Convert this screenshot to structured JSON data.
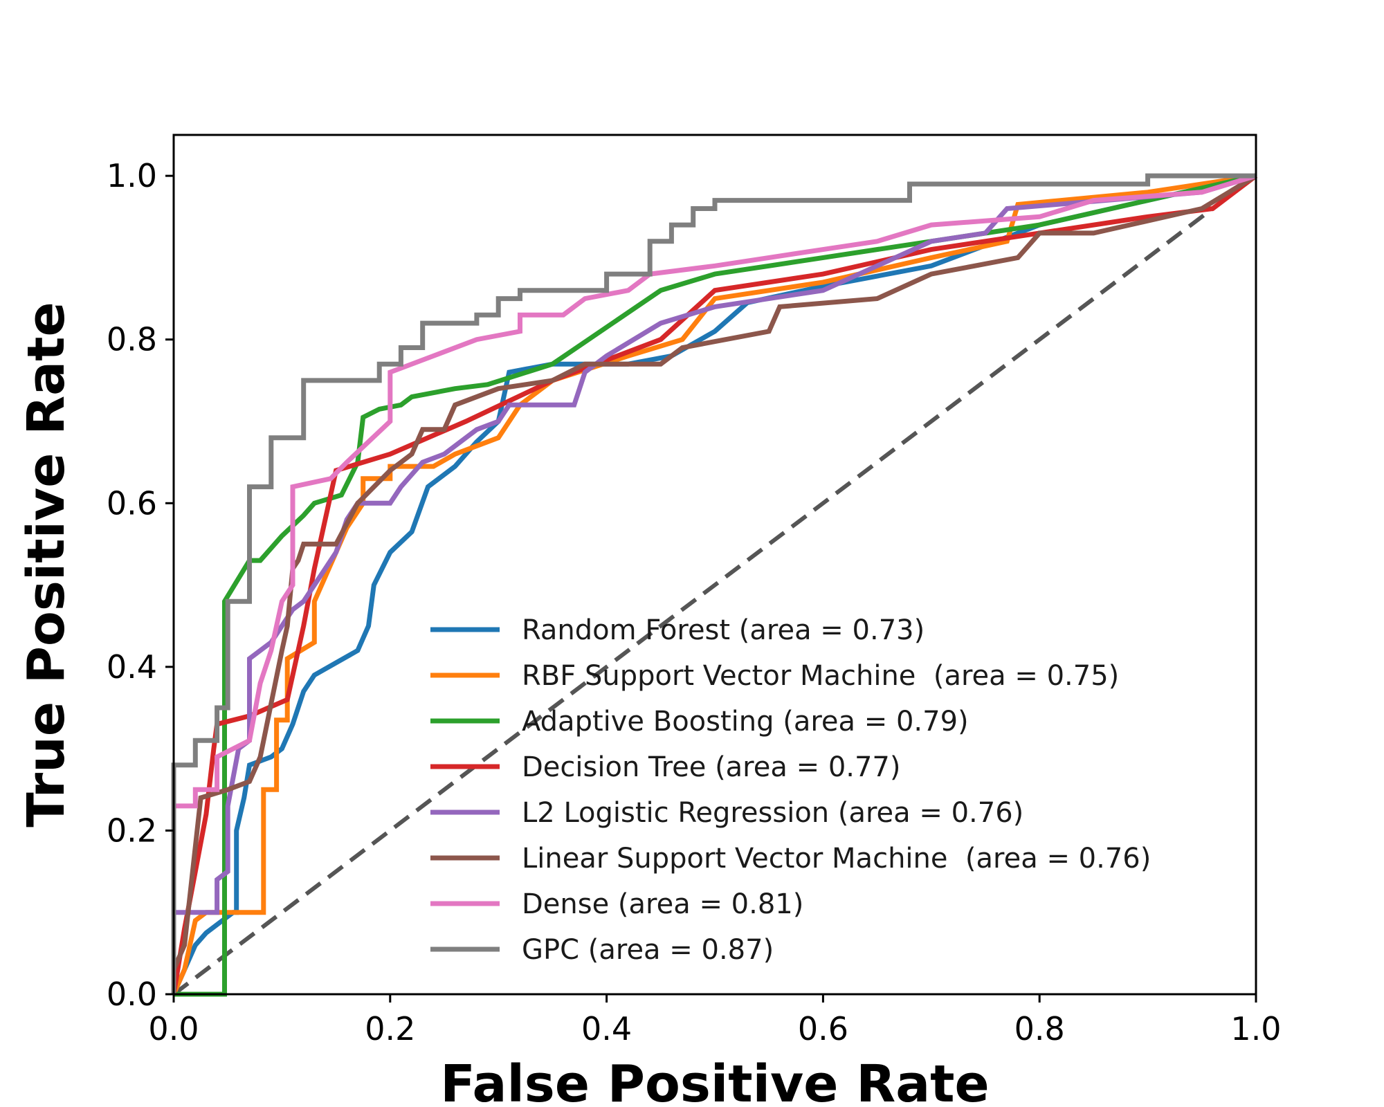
{
  "chart_data": {
    "type": "line",
    "title": "",
    "xlabel": "False Positive Rate",
    "ylabel": "True Positive Rate",
    "xlim": [
      0.0,
      1.0
    ],
    "ylim": [
      0.0,
      1.05
    ],
    "xticks": [
      "0.0",
      "0.2",
      "0.4",
      "0.6",
      "0.8",
      "1.0"
    ],
    "yticks": [
      "0.0",
      "0.2",
      "0.4",
      "0.6",
      "0.8",
      "1.0"
    ],
    "grid": false,
    "legend_position": "lower-right",
    "baseline": {
      "points": [
        [
          0,
          0
        ],
        [
          1,
          1
        ]
      ],
      "color": "#555555",
      "style": "dashed"
    },
    "series": [
      {
        "name": "Random Forest (area = 0.73)",
        "color": "#1f77b4",
        "points": [
          [
            0,
            0
          ],
          [
            0.01,
            0.03
          ],
          [
            0.02,
            0.06
          ],
          [
            0.03,
            0.075
          ],
          [
            0.045,
            0.09
          ],
          [
            0.055,
            0.1
          ],
          [
            0.058,
            0.1
          ],
          [
            0.058,
            0.2
          ],
          [
            0.065,
            0.24
          ],
          [
            0.07,
            0.28
          ],
          [
            0.09,
            0.29
          ],
          [
            0.1,
            0.3
          ],
          [
            0.11,
            0.33
          ],
          [
            0.12,
            0.37
          ],
          [
            0.13,
            0.39
          ],
          [
            0.15,
            0.405
          ],
          [
            0.17,
            0.42
          ],
          [
            0.18,
            0.45
          ],
          [
            0.185,
            0.5
          ],
          [
            0.2,
            0.54
          ],
          [
            0.22,
            0.565
          ],
          [
            0.235,
            0.62
          ],
          [
            0.26,
            0.645
          ],
          [
            0.28,
            0.675
          ],
          [
            0.3,
            0.7
          ],
          [
            0.31,
            0.76
          ],
          [
            0.35,
            0.77
          ],
          [
            0.38,
            0.77
          ],
          [
            0.42,
            0.77
          ],
          [
            0.46,
            0.78
          ],
          [
            0.5,
            0.81
          ],
          [
            0.53,
            0.845
          ],
          [
            0.6,
            0.865
          ],
          [
            0.7,
            0.89
          ],
          [
            0.8,
            0.94
          ],
          [
            0.9,
            0.97
          ],
          [
            1,
            1
          ]
        ]
      },
      {
        "name": "RBF Support Vector Machine  (area = 0.75)",
        "color": "#ff7f0e",
        "points": [
          [
            0,
            0
          ],
          [
            0.01,
            0.03
          ],
          [
            0.02,
            0.09
          ],
          [
            0.03,
            0.1
          ],
          [
            0.083,
            0.1
          ],
          [
            0.083,
            0.25
          ],
          [
            0.095,
            0.25
          ],
          [
            0.095,
            0.335
          ],
          [
            0.105,
            0.335
          ],
          [
            0.105,
            0.41
          ],
          [
            0.13,
            0.43
          ],
          [
            0.13,
            0.48
          ],
          [
            0.15,
            0.54
          ],
          [
            0.16,
            0.57
          ],
          [
            0.175,
            0.6
          ],
          [
            0.175,
            0.63
          ],
          [
            0.2,
            0.63
          ],
          [
            0.2,
            0.645
          ],
          [
            0.24,
            0.645
          ],
          [
            0.26,
            0.66
          ],
          [
            0.3,
            0.68
          ],
          [
            0.32,
            0.72
          ],
          [
            0.35,
            0.75
          ],
          [
            0.42,
            0.78
          ],
          [
            0.47,
            0.8
          ],
          [
            0.5,
            0.85
          ],
          [
            0.6,
            0.87
          ],
          [
            0.7,
            0.9
          ],
          [
            0.77,
            0.92
          ],
          [
            0.78,
            0.965
          ],
          [
            0.9,
            0.98
          ],
          [
            1,
            1
          ]
        ]
      },
      {
        "name": "Adaptive Boosting (area = 0.79)",
        "color": "#2ca02c",
        "points": [
          [
            0,
            0
          ],
          [
            0.047,
            0
          ],
          [
            0.047,
            0.48
          ],
          [
            0.07,
            0.53
          ],
          [
            0.08,
            0.53
          ],
          [
            0.1,
            0.56
          ],
          [
            0.12,
            0.585
          ],
          [
            0.13,
            0.6
          ],
          [
            0.155,
            0.61
          ],
          [
            0.17,
            0.65
          ],
          [
            0.175,
            0.705
          ],
          [
            0.19,
            0.715
          ],
          [
            0.21,
            0.72
          ],
          [
            0.22,
            0.73
          ],
          [
            0.26,
            0.74
          ],
          [
            0.29,
            0.745
          ],
          [
            0.35,
            0.77
          ],
          [
            0.45,
            0.86
          ],
          [
            0.5,
            0.88
          ],
          [
            0.55,
            0.89
          ],
          [
            0.6,
            0.9
          ],
          [
            0.7,
            0.92
          ],
          [
            0.8,
            0.94
          ],
          [
            0.9,
            0.97
          ],
          [
            1,
            1
          ]
        ]
      },
      {
        "name": "Decision Tree (area = 0.77)",
        "color": "#d62728",
        "points": [
          [
            0,
            0
          ],
          [
            0.01,
            0.08
          ],
          [
            0.02,
            0.15
          ],
          [
            0.03,
            0.22
          ],
          [
            0.037,
            0.3
          ],
          [
            0.04,
            0.33
          ],
          [
            0.07,
            0.34
          ],
          [
            0.105,
            0.36
          ],
          [
            0.12,
            0.45
          ],
          [
            0.13,
            0.52
          ],
          [
            0.15,
            0.64
          ],
          [
            0.2,
            0.66
          ],
          [
            0.27,
            0.7
          ],
          [
            0.35,
            0.75
          ],
          [
            0.45,
            0.8
          ],
          [
            0.5,
            0.86
          ],
          [
            0.6,
            0.88
          ],
          [
            0.7,
            0.91
          ],
          [
            0.8,
            0.93
          ],
          [
            0.9,
            0.95
          ],
          [
            0.96,
            0.96
          ],
          [
            1,
            1
          ]
        ]
      },
      {
        "name": "L2 Logistic Regression (area = 0.76)",
        "color": "#9467bd",
        "points": [
          [
            0,
            0.1
          ],
          [
            0.04,
            0.1
          ],
          [
            0.04,
            0.14
          ],
          [
            0.05,
            0.15
          ],
          [
            0.05,
            0.23
          ],
          [
            0.06,
            0.3
          ],
          [
            0.07,
            0.31
          ],
          [
            0.07,
            0.41
          ],
          [
            0.09,
            0.43
          ],
          [
            0.1,
            0.45
          ],
          [
            0.11,
            0.47
          ],
          [
            0.12,
            0.48
          ],
          [
            0.13,
            0.5
          ],
          [
            0.14,
            0.52
          ],
          [
            0.15,
            0.54
          ],
          [
            0.16,
            0.58
          ],
          [
            0.17,
            0.6
          ],
          [
            0.2,
            0.6
          ],
          [
            0.21,
            0.62
          ],
          [
            0.23,
            0.65
          ],
          [
            0.25,
            0.66
          ],
          [
            0.28,
            0.69
          ],
          [
            0.3,
            0.7
          ],
          [
            0.31,
            0.72
          ],
          [
            0.37,
            0.72
          ],
          [
            0.38,
            0.76
          ],
          [
            0.4,
            0.78
          ],
          [
            0.45,
            0.82
          ],
          [
            0.5,
            0.84
          ],
          [
            0.55,
            0.85
          ],
          [
            0.6,
            0.86
          ],
          [
            0.7,
            0.92
          ],
          [
            0.75,
            0.93
          ],
          [
            0.77,
            0.96
          ],
          [
            0.95,
            0.98
          ],
          [
            1,
            1
          ]
        ]
      },
      {
        "name": "Linear Support Vector Machine  (area = 0.76)",
        "color": "#8c564b",
        "points": [
          [
            0,
            0.03
          ],
          [
            0.01,
            0.06
          ],
          [
            0.025,
            0.24
          ],
          [
            0.05,
            0.25
          ],
          [
            0.07,
            0.26
          ],
          [
            0.08,
            0.29
          ],
          [
            0.1,
            0.42
          ],
          [
            0.105,
            0.45
          ],
          [
            0.11,
            0.52
          ],
          [
            0.115,
            0.53
          ],
          [
            0.12,
            0.55
          ],
          [
            0.15,
            0.55
          ],
          [
            0.17,
            0.6
          ],
          [
            0.2,
            0.64
          ],
          [
            0.22,
            0.66
          ],
          [
            0.23,
            0.69
          ],
          [
            0.25,
            0.69
          ],
          [
            0.26,
            0.72
          ],
          [
            0.3,
            0.74
          ],
          [
            0.35,
            0.75
          ],
          [
            0.38,
            0.77
          ],
          [
            0.45,
            0.77
          ],
          [
            0.47,
            0.79
          ],
          [
            0.55,
            0.81
          ],
          [
            0.56,
            0.84
          ],
          [
            0.65,
            0.85
          ],
          [
            0.7,
            0.88
          ],
          [
            0.74,
            0.89
          ],
          [
            0.78,
            0.9
          ],
          [
            0.8,
            0.93
          ],
          [
            0.85,
            0.93
          ],
          [
            0.95,
            0.96
          ],
          [
            1,
            1
          ]
        ]
      },
      {
        "name": "Dense (area = 0.81)",
        "color": "#e377c2",
        "points": [
          [
            0,
            0.23
          ],
          [
            0.02,
            0.23
          ],
          [
            0.02,
            0.25
          ],
          [
            0.04,
            0.25
          ],
          [
            0.04,
            0.29
          ],
          [
            0.07,
            0.31
          ],
          [
            0.08,
            0.38
          ],
          [
            0.09,
            0.42
          ],
          [
            0.1,
            0.48
          ],
          [
            0.11,
            0.5
          ],
          [
            0.11,
            0.62
          ],
          [
            0.145,
            0.63
          ],
          [
            0.16,
            0.65
          ],
          [
            0.2,
            0.7
          ],
          [
            0.2,
            0.76
          ],
          [
            0.24,
            0.78
          ],
          [
            0.28,
            0.8
          ],
          [
            0.32,
            0.81
          ],
          [
            0.32,
            0.83
          ],
          [
            0.36,
            0.83
          ],
          [
            0.38,
            0.85
          ],
          [
            0.42,
            0.86
          ],
          [
            0.44,
            0.88
          ],
          [
            0.5,
            0.89
          ],
          [
            0.55,
            0.9
          ],
          [
            0.6,
            0.91
          ],
          [
            0.65,
            0.92
          ],
          [
            0.7,
            0.94
          ],
          [
            0.8,
            0.95
          ],
          [
            0.85,
            0.97
          ],
          [
            0.95,
            0.98
          ],
          [
            1,
            1
          ]
        ]
      },
      {
        "name": "GPC (area = 0.87)",
        "color": "#7f7f7f",
        "points": [
          [
            0,
            0
          ],
          [
            0,
            0.28
          ],
          [
            0.02,
            0.28
          ],
          [
            0.02,
            0.31
          ],
          [
            0.04,
            0.31
          ],
          [
            0.04,
            0.35
          ],
          [
            0.05,
            0.35
          ],
          [
            0.05,
            0.48
          ],
          [
            0.07,
            0.48
          ],
          [
            0.07,
            0.62
          ],
          [
            0.09,
            0.62
          ],
          [
            0.09,
            0.68
          ],
          [
            0.12,
            0.68
          ],
          [
            0.12,
            0.75
          ],
          [
            0.19,
            0.75
          ],
          [
            0.19,
            0.77
          ],
          [
            0.21,
            0.77
          ],
          [
            0.21,
            0.79
          ],
          [
            0.23,
            0.79
          ],
          [
            0.23,
            0.82
          ],
          [
            0.28,
            0.82
          ],
          [
            0.28,
            0.83
          ],
          [
            0.3,
            0.83
          ],
          [
            0.3,
            0.85
          ],
          [
            0.32,
            0.85
          ],
          [
            0.32,
            0.86
          ],
          [
            0.4,
            0.86
          ],
          [
            0.4,
            0.88
          ],
          [
            0.44,
            0.88
          ],
          [
            0.44,
            0.92
          ],
          [
            0.46,
            0.92
          ],
          [
            0.46,
            0.94
          ],
          [
            0.48,
            0.94
          ],
          [
            0.48,
            0.96
          ],
          [
            0.5,
            0.96
          ],
          [
            0.5,
            0.97
          ],
          [
            0.68,
            0.97
          ],
          [
            0.68,
            0.99
          ],
          [
            0.9,
            0.99
          ],
          [
            0.9,
            1
          ],
          [
            1,
            1
          ]
        ]
      }
    ]
  }
}
